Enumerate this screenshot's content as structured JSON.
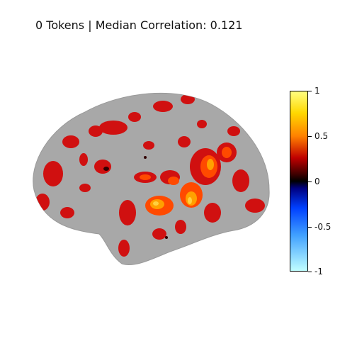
{
  "figure": {
    "title": "0 Tokens | Median Correlation: 0.121"
  },
  "colorbar": {
    "ticks": [
      "1",
      "0.5",
      "0",
      "-0.5",
      "-1"
    ],
    "range": [
      -1,
      1
    ],
    "colormap": "cold-hot",
    "colors": {
      "max": "#ffff80",
      "high": "#ff8000",
      "mid_pos": "#c00000",
      "zero": "#000000",
      "mid_neg": "#0040ff",
      "min": "#c0ffff"
    }
  },
  "brain": {
    "view": "lateral",
    "surface_color": "#a8a8a8",
    "activation_colors": [
      "#d01010",
      "#ff3000",
      "#ff7a00",
      "#ffb000"
    ]
  }
}
